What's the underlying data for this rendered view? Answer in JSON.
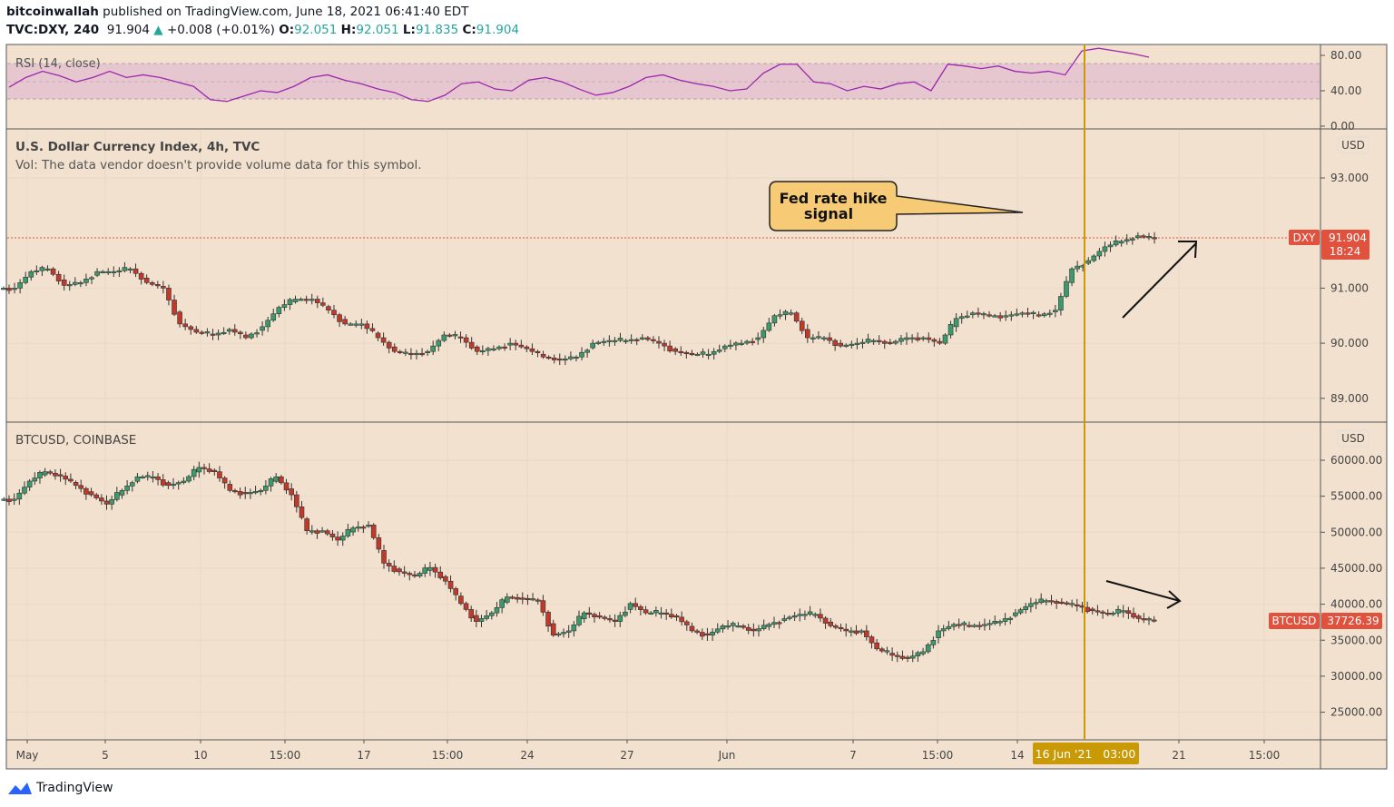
{
  "header": {
    "author": "bitcoinwallah",
    "published": "published on TradingView.com, June 18, 2021 06:41:40 EDT",
    "symbol": "TVC:DXY, 240",
    "price": "91.904",
    "arrow": "▲",
    "change": "+0.008 (+0.01%)",
    "o_label": "O:",
    "o": "92.051",
    "h_label": "H:",
    "h": "92.051",
    "l_label": "L:",
    "l": "91.835",
    "c_label": "C:",
    "c": "91.904"
  },
  "footer": {
    "brand": "TradingView"
  },
  "colors": {
    "bg": "#f2e1cf",
    "up": "#3a9a6a",
    "down": "#c0392b",
    "rsi": "#9c27b0",
    "gold": "#c99a06",
    "label_red": "#e0523e"
  },
  "chart_data": [
    {
      "type": "line",
      "title": "RSI (14, close)",
      "ylim": [
        0,
        100
      ],
      "yticks": [
        "80.00",
        "40.00",
        "0.00"
      ],
      "band": [
        30,
        70
      ],
      "values": [
        44,
        55,
        62,
        57,
        50,
        55,
        62,
        55,
        58,
        55,
        50,
        45,
        30,
        28,
        34,
        40,
        38,
        45,
        55,
        58,
        52,
        48,
        42,
        38,
        30,
        28,
        35,
        48,
        50,
        42,
        40,
        52,
        55,
        50,
        42,
        35,
        38,
        45,
        55,
        58,
        52,
        48,
        45,
        40,
        42,
        60,
        70,
        70,
        50,
        48,
        40,
        45,
        42,
        48,
        50,
        40,
        70,
        68,
        65,
        68,
        62,
        60,
        62,
        58,
        85,
        88,
        85,
        82,
        78
      ]
    },
    {
      "type": "candlestick",
      "title": "U.S. Dollar Currency Index, 4h, TVC",
      "subtitle": "Vol: The data vendor doesn't provide volume data for this symbol.",
      "currency": "USD",
      "ylim": [
        88.55,
        93.85
      ],
      "yticks": [
        "93.000",
        "91.000",
        "90.000",
        "89.000"
      ],
      "ytick_values": [
        93,
        91,
        90,
        89
      ],
      "last": {
        "symbol": "DXY",
        "price": "91.904",
        "time": "18:24"
      },
      "closes": [
        91.0,
        91.3,
        91.35,
        91.05,
        91.1,
        91.3,
        91.3,
        91.35,
        91.1,
        91.0,
        90.35,
        90.2,
        90.15,
        90.25,
        90.1,
        90.3,
        90.65,
        90.8,
        90.8,
        90.6,
        90.35,
        90.35,
        90.1,
        89.85,
        89.8,
        89.85,
        90.15,
        90.1,
        89.85,
        89.9,
        90.0,
        89.9,
        89.75,
        89.7,
        89.75,
        90.0,
        90.05,
        90.05,
        90.1,
        90.0,
        89.85,
        89.8,
        89.8,
        89.95,
        90.0,
        90.1,
        90.5,
        90.55,
        90.1,
        90.1,
        89.95,
        90.0,
        90.05,
        90.0,
        90.1,
        90.1,
        90.0,
        90.45,
        90.55,
        90.5,
        90.5,
        90.55,
        90.5,
        90.6,
        91.35,
        91.5,
        91.75,
        91.85,
        91.95,
        91.904
      ],
      "annotation": "Fed rate hike signal"
    },
    {
      "type": "candlestick",
      "title": "BTCUSD, COINBASE",
      "currency": "USD",
      "ylim": [
        21000,
        65000
      ],
      "yticks": [
        "60000.00",
        "55000.00",
        "50000.00",
        "45000.00",
        "40000.00",
        "35000.00",
        "30000.00",
        "25000.00"
      ],
      "ytick_values": [
        60000,
        55000,
        50000,
        45000,
        40000,
        35000,
        30000,
        25000
      ],
      "last": {
        "symbol": "BTCUSD",
        "price": "37726.39"
      },
      "closes": [
        54600,
        57100,
        58400,
        57800,
        56500,
        55200,
        53900,
        55800,
        57700,
        57700,
        56500,
        57100,
        59000,
        58400,
        55800,
        55400,
        55800,
        57700,
        55200,
        50200,
        50200,
        48900,
        50600,
        51000,
        45700,
        44500,
        43900,
        45100,
        43200,
        40100,
        37600,
        38800,
        41000,
        40800,
        40500,
        35700,
        36300,
        38800,
        38200,
        37600,
        40100,
        38800,
        38800,
        38200,
        36300,
        35700,
        37000,
        37000,
        36300,
        37200,
        38000,
        38600,
        38600,
        37000,
        36300,
        36300,
        33800,
        32900,
        32500,
        33400,
        36300,
        37200,
        37000,
        37200,
        37600,
        38800,
        40100,
        40500,
        40200,
        39800,
        39100,
        38600,
        39100,
        38000,
        37726
      ]
    },
    {
      "type": "time_axis",
      "labels": [
        "May",
        "5",
        "10",
        "15:00",
        "17",
        "15:00",
        "24",
        "27",
        "Jun",
        "7",
        "15:00",
        "14",
        "21",
        "15:00"
      ],
      "cursor_label": "16 Jun '21   03:00"
    }
  ]
}
